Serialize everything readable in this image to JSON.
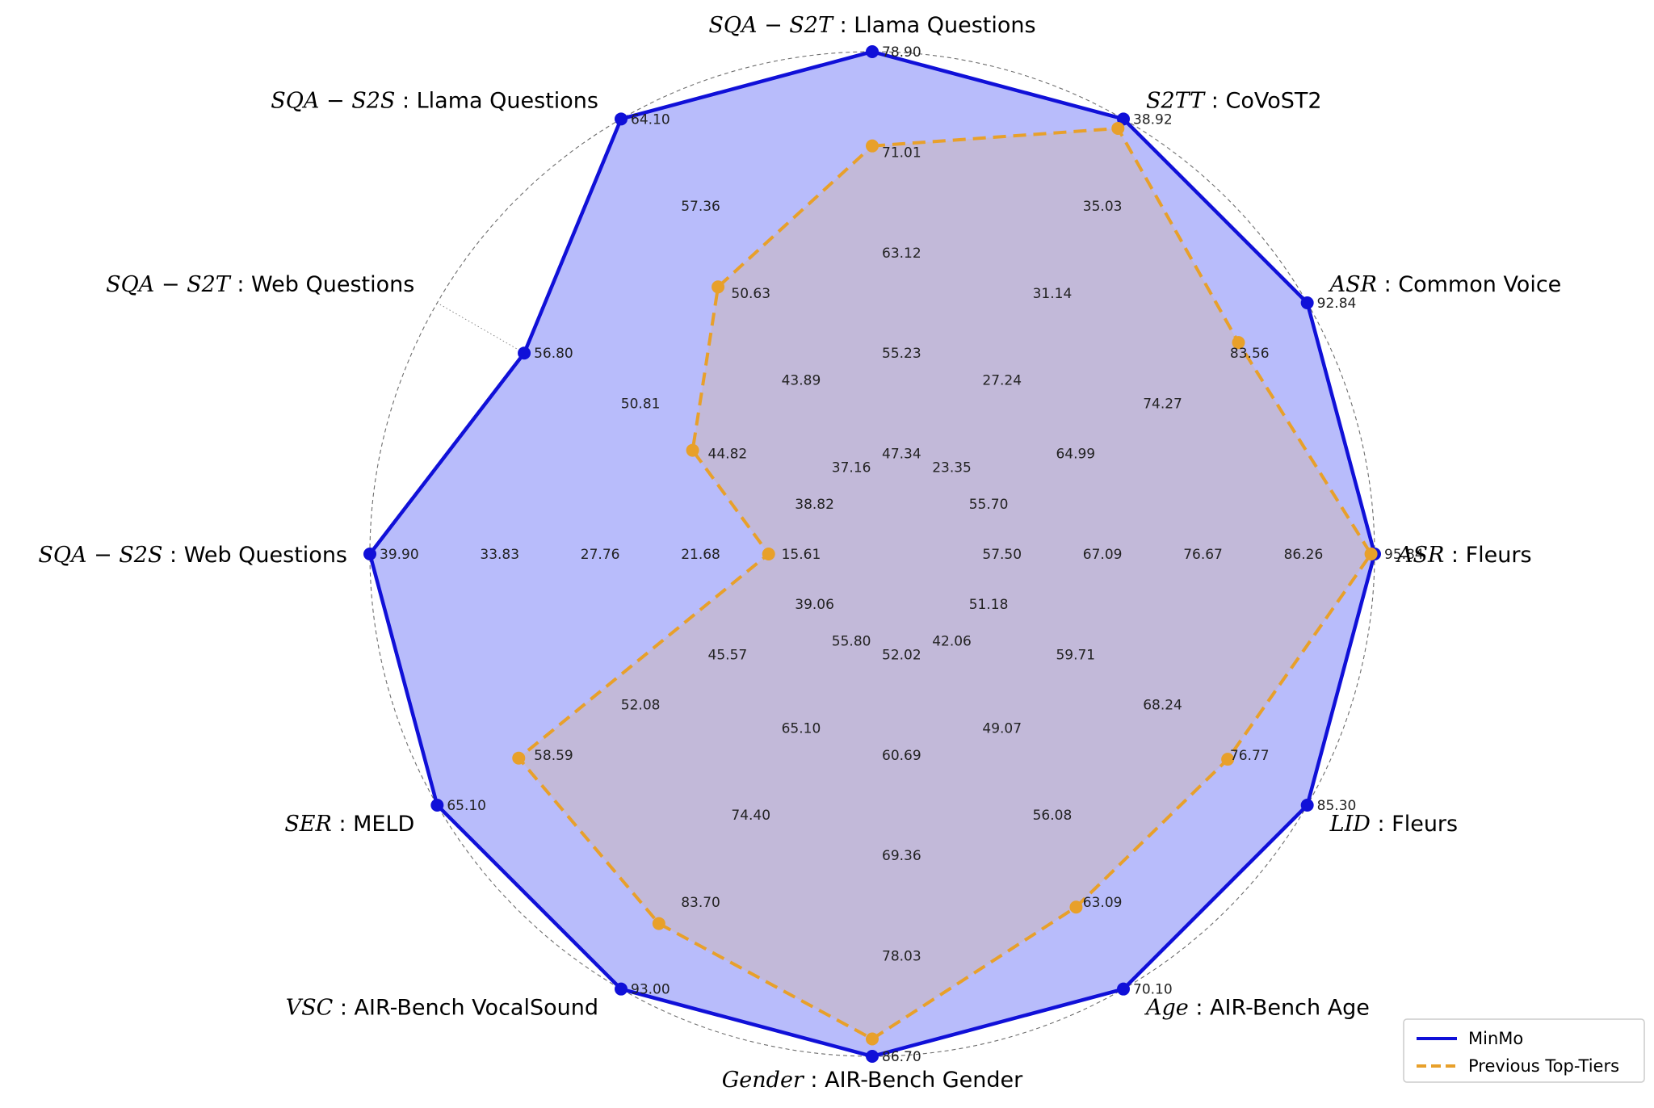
{
  "chart_data": {
    "type": "radar",
    "grid": true,
    "legend_position": "bottom-right",
    "colors": {
      "series_0": "#1010d8",
      "series_0_fill": "#b8bcfb",
      "series_1": "#e8a02a",
      "series_1_fill": "#c6b8cd"
    },
    "axes": [
      {
        "metric": "SQA − S2T",
        "dataset": "Llama Questions",
        "ticks": [
          "47.34",
          "55.23",
          "63.12",
          "71.01",
          "78.90"
        ]
      },
      {
        "metric": "S2TT",
        "dataset": "CoVoST2",
        "ticks": [
          "23.35",
          "27.24",
          "31.14",
          "35.03",
          "38.92"
        ]
      },
      {
        "metric": "ASR",
        "dataset": "Common Voice",
        "ticks": [
          "55.70",
          "64.99",
          "74.27",
          "83.56",
          "92.84"
        ]
      },
      {
        "metric": "ASR",
        "dataset": "Fleurs",
        "ticks": [
          "57.50",
          "67.09",
          "76.67",
          "86.26",
          "95.84"
        ]
      },
      {
        "metric": "LID",
        "dataset": "Fleurs",
        "ticks": [
          "51.18",
          "59.71",
          "68.24",
          "76.77",
          "85.30"
        ]
      },
      {
        "metric": "Age",
        "dataset": "AIR-Bench Age",
        "ticks": [
          "42.06",
          "49.07",
          "56.08",
          "63.09",
          "70.10"
        ]
      },
      {
        "metric": "Gender",
        "dataset": "AIR-Bench Gender",
        "ticks": [
          "52.02",
          "60.69",
          "69.36",
          "78.03",
          "86.70"
        ]
      },
      {
        "metric": "VSC",
        "dataset": "AIR-Bench VocalSound",
        "ticks": [
          "55.80",
          "65.10",
          "74.40",
          "83.70",
          "93.00"
        ]
      },
      {
        "metric": "SER",
        "dataset": "MELD",
        "ticks": [
          "39.06",
          "45.57",
          "52.08",
          "58.59",
          "65.10"
        ]
      },
      {
        "metric": "SQA − S2S",
        "dataset": "Web Questions",
        "ticks": [
          "15.61",
          "21.68",
          "27.76",
          "33.83",
          "39.90"
        ]
      },
      {
        "metric": "SQA − S2T",
        "dataset": "Web Questions",
        "ticks": [
          "38.82",
          "44.82",
          "50.81",
          "56.80",
          ""
        ]
      },
      {
        "metric": "SQA − S2S",
        "dataset": "Llama Questions",
        "ticks": [
          "37.16",
          "43.89",
          "50.63",
          "57.36",
          "64.10"
        ]
      }
    ],
    "series": [
      {
        "name": "MinMo",
        "style": "solid",
        "values": [
          78.9,
          38.92,
          92.84,
          95.84,
          85.3,
          70.1,
          86.7,
          93.0,
          65.1,
          39.9,
          56.8,
          64.1
        ]
      },
      {
        "name": "Previous Top-Tiers",
        "style": "dashed",
        "values": [
          71.5,
          38.5,
          85.5,
          95.5,
          77.5,
          63.5,
          85.2,
          86.0,
          59.0,
          15.8,
          45.2,
          51.1
        ]
      }
    ]
  }
}
